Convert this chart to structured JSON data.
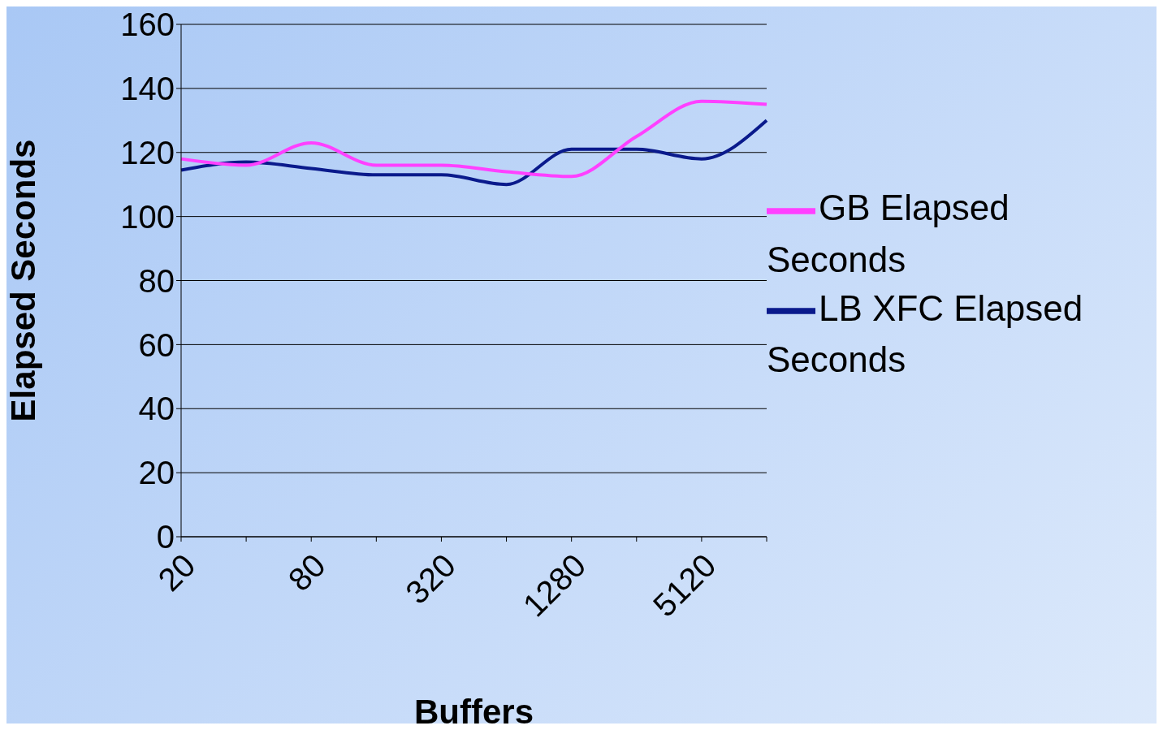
{
  "chart_data": {
    "type": "line",
    "xlabel": "Buffers",
    "ylabel": "Elapsed Seconds",
    "categories": [
      "20",
      null,
      "80",
      null,
      "320",
      null,
      "1280",
      null,
      "5120",
      null
    ],
    "series": [
      {
        "name": "LB XFC Elapsed Seconds",
        "color": "#0a1a8c",
        "values": [
          114.5,
          117,
          115,
          113,
          113,
          110,
          121,
          121,
          118,
          130
        ]
      },
      {
        "name": "GB Elapsed Seconds",
        "color": "#ff40ff",
        "values": [
          118,
          116,
          123,
          116,
          116,
          114,
          112.5,
          125,
          136,
          135
        ]
      }
    ],
    "ylim": [
      0,
      160
    ],
    "yticks": [
      0,
      20,
      40,
      60,
      80,
      100,
      120,
      140,
      160
    ],
    "grid": "y",
    "legend": "right",
    "line_style": "solid"
  }
}
